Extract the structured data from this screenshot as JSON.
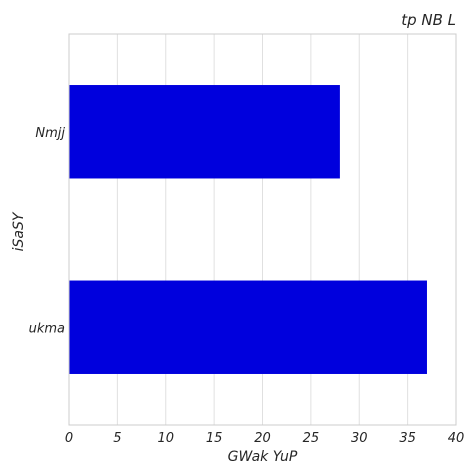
{
  "chart_data": {
    "type": "bar",
    "orientation": "horizontal",
    "title": "tp   NB L",
    "xlabel": "GWak YuP",
    "ylabel": "iSaSY",
    "categories": [
      "Nmjj",
      "ukma"
    ],
    "series": [
      {
        "values": [
          28,
          37
        ]
      }
    ],
    "xlim": [
      0,
      40
    ],
    "xticks": [
      "0",
      "5",
      "10",
      "15",
      "20",
      "25",
      "30",
      "35",
      "40"
    ],
    "grid": true,
    "bar_color": "#0000dd"
  }
}
